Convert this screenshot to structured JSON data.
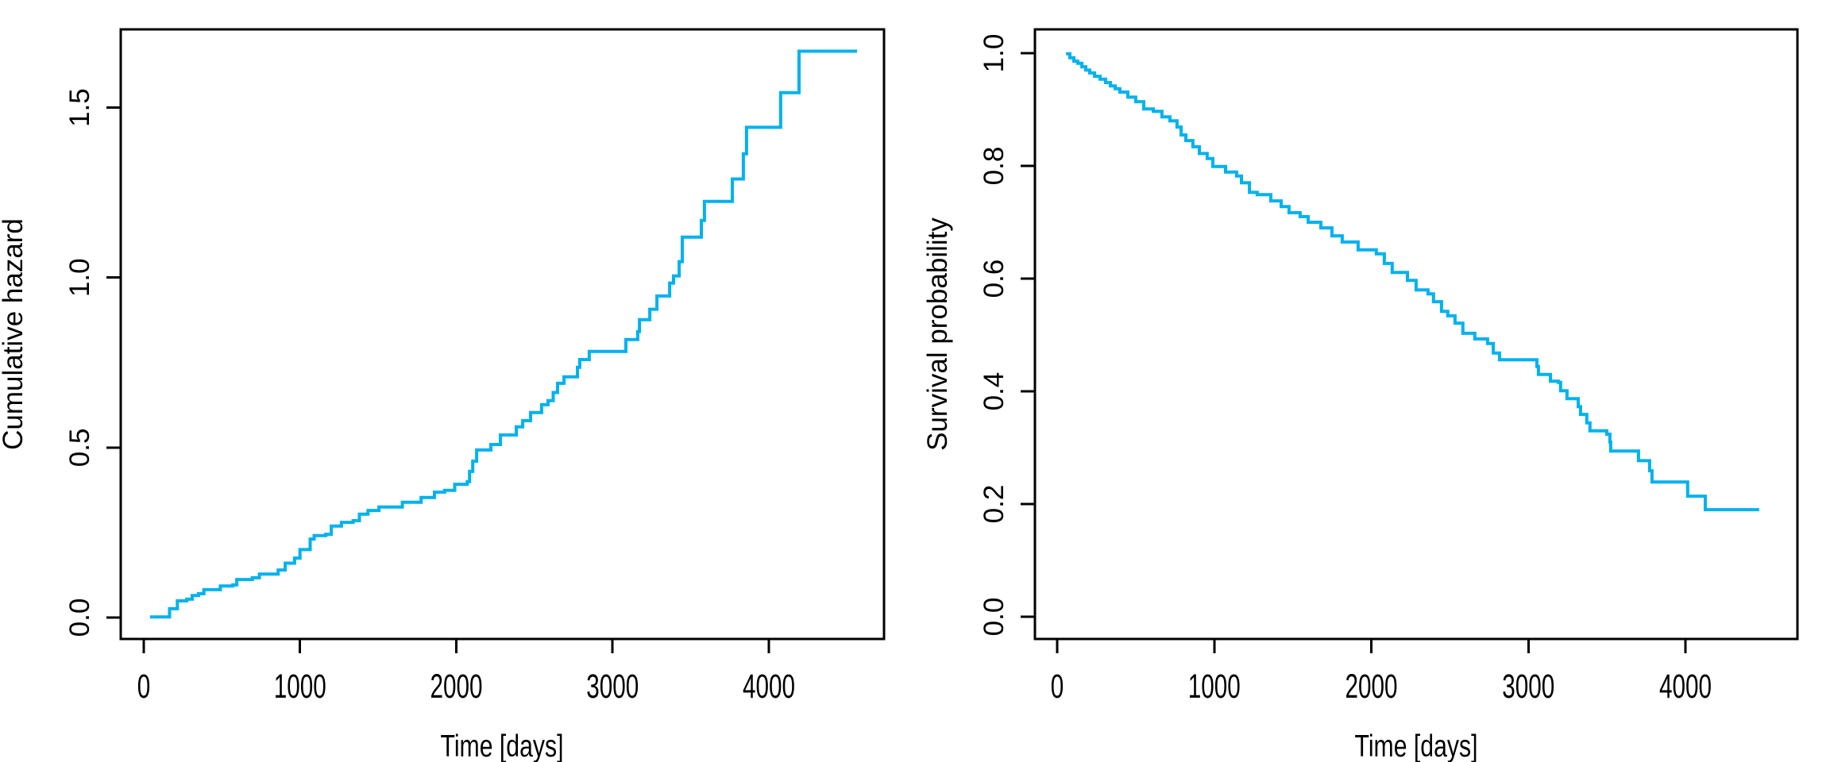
{
  "figure": {
    "background": "#ffffff",
    "axis_color": "#000000",
    "curve_color": "#00B2EE"
  },
  "chart_data": [
    {
      "type": "line",
      "style": "step",
      "panel": "cumulative-hazard",
      "xlabel": "Time [days]",
      "ylabel": "Cumulative hazard",
      "xlim": [
        -147.4,
        4737
      ],
      "ylim": [
        -0.063,
        1.7302
      ],
      "x_tick_values": [
        0,
        1000,
        2000,
        3000,
        4000
      ],
      "x_tick_labels": [
        "0",
        "1000",
        "2000",
        "3000",
        "4000"
      ],
      "y_tick_values": [
        0.0,
        0.5,
        1.0,
        1.5
      ],
      "y_tick_labels": [
        "0.0",
        "0.5",
        "1.0",
        "1.5"
      ],
      "grid": false,
      "legend": null,
      "steps": [
        [
          40,
          0.002
        ],
        [
          165,
          0.026
        ],
        [
          215,
          0.049
        ],
        [
          275,
          0.054
        ],
        [
          310,
          0.065
        ],
        [
          350,
          0.07
        ],
        [
          385,
          0.082
        ],
        [
          490,
          0.093
        ],
        [
          570,
          0.096
        ],
        [
          595,
          0.112
        ],
        [
          695,
          0.117
        ],
        [
          740,
          0.128
        ],
        [
          860,
          0.14
        ],
        [
          905,
          0.16
        ],
        [
          965,
          0.175
        ],
        [
          1000,
          0.2
        ],
        [
          1065,
          0.231
        ],
        [
          1090,
          0.241
        ],
        [
          1165,
          0.245
        ],
        [
          1200,
          0.269
        ],
        [
          1265,
          0.28
        ],
        [
          1340,
          0.285
        ],
        [
          1380,
          0.304
        ],
        [
          1435,
          0.315
        ],
        [
          1505,
          0.325
        ],
        [
          1655,
          0.339
        ],
        [
          1775,
          0.353
        ],
        [
          1860,
          0.369
        ],
        [
          1925,
          0.374
        ],
        [
          1990,
          0.392
        ],
        [
          2070,
          0.4
        ],
        [
          2085,
          0.43
        ],
        [
          2105,
          0.46
        ],
        [
          2130,
          0.493
        ],
        [
          2221,
          0.509
        ],
        [
          2282,
          0.537
        ],
        [
          2384,
          0.561
        ],
        [
          2425,
          0.579
        ],
        [
          2475,
          0.603
        ],
        [
          2546,
          0.626
        ],
        [
          2587,
          0.638
        ],
        [
          2620,
          0.662
        ],
        [
          2648,
          0.689
        ],
        [
          2689,
          0.708
        ],
        [
          2775,
          0.736
        ],
        [
          2790,
          0.759
        ],
        [
          2851,
          0.783
        ],
        [
          3085,
          0.818
        ],
        [
          3161,
          0.841
        ],
        [
          3172,
          0.876
        ],
        [
          3238,
          0.907
        ],
        [
          3284,
          0.946
        ],
        [
          3365,
          0.984
        ],
        [
          3390,
          1.005
        ],
        [
          3426,
          1.047
        ],
        [
          3446,
          1.119
        ],
        [
          3568,
          1.168
        ],
        [
          3588,
          1.224
        ],
        [
          3766,
          1.29
        ],
        [
          3837,
          1.364
        ],
        [
          3857,
          1.442
        ],
        [
          4076,
          1.544
        ],
        [
          4193,
          1.666
        ],
        [
          4564,
          1.666
        ]
      ]
    },
    {
      "type": "line",
      "style": "step",
      "panel": "survival-probability",
      "xlabel": "Time [days]",
      "ylabel": "Survival probability",
      "xlim": [
        -141.6,
        4712.8
      ],
      "ylim": [
        -0.0394,
        1.0423
      ],
      "x_tick_values": [
        0,
        1000,
        2000,
        3000,
        4000
      ],
      "x_tick_labels": [
        "0",
        "1000",
        "2000",
        "3000",
        "4000"
      ],
      "y_tick_values": [
        0.0,
        0.2,
        0.4,
        0.6,
        0.8,
        1.0
      ],
      "y_tick_labels": [
        "0.0",
        "0.2",
        "0.4",
        "0.6",
        "0.8",
        "1.0"
      ],
      "grid": false,
      "legend": null,
      "steps": [
        [
          56,
          0.999
        ],
        [
          81,
          0.992
        ],
        [
          106,
          0.986
        ],
        [
          131,
          0.982
        ],
        [
          157,
          0.976
        ],
        [
          182,
          0.97
        ],
        [
          207,
          0.965
        ],
        [
          238,
          0.959
        ],
        [
          273,
          0.954
        ],
        [
          308,
          0.948
        ],
        [
          339,
          0.942
        ],
        [
          369,
          0.937
        ],
        [
          399,
          0.931
        ],
        [
          450,
          0.922
        ],
        [
          500,
          0.914
        ],
        [
          551,
          0.901
        ],
        [
          612,
          0.897
        ],
        [
          667,
          0.887
        ],
        [
          718,
          0.88
        ],
        [
          763,
          0.869
        ],
        [
          789,
          0.855
        ],
        [
          819,
          0.845
        ],
        [
          864,
          0.834
        ],
        [
          905,
          0.822
        ],
        [
          955,
          0.813
        ],
        [
          991,
          0.799
        ],
        [
          1072,
          0.789
        ],
        [
          1143,
          0.782
        ],
        [
          1173,
          0.77
        ],
        [
          1224,
          0.753
        ],
        [
          1274,
          0.749
        ],
        [
          1360,
          0.738
        ],
        [
          1426,
          0.728
        ],
        [
          1476,
          0.717
        ],
        [
          1547,
          0.71
        ],
        [
          1598,
          0.7
        ],
        [
          1679,
          0.69
        ],
        [
          1749,
          0.676
        ],
        [
          1815,
          0.665
        ],
        [
          1916,
          0.651
        ],
        [
          2032,
          0.644
        ],
        [
          2083,
          0.627
        ],
        [
          2133,
          0.611
        ],
        [
          2230,
          0.597
        ],
        [
          2285,
          0.58
        ],
        [
          2361,
          0.573
        ],
        [
          2396,
          0.559
        ],
        [
          2447,
          0.542
        ],
        [
          2487,
          0.534
        ],
        [
          2533,
          0.521
        ],
        [
          2583,
          0.503
        ],
        [
          2659,
          0.493
        ],
        [
          2740,
          0.485
        ],
        [
          2776,
          0.468
        ],
        [
          2816,
          0.456
        ],
        [
          3054,
          0.444
        ],
        [
          3064,
          0.43
        ],
        [
          3140,
          0.418
        ],
        [
          3190,
          0.416
        ],
        [
          3205,
          0.401
        ],
        [
          3246,
          0.387
        ],
        [
          3317,
          0.373
        ],
        [
          3332,
          0.359
        ],
        [
          3372,
          0.344
        ],
        [
          3392,
          0.33
        ],
        [
          3499,
          0.324
        ],
        [
          3519,
          0.31
        ],
        [
          3524,
          0.294
        ],
        [
          3701,
          0.277
        ],
        [
          3772,
          0.259
        ],
        [
          3787,
          0.239
        ],
        [
          4014,
          0.214
        ],
        [
          4126,
          0.19
        ],
        [
          4469,
          0.19
        ]
      ]
    }
  ]
}
